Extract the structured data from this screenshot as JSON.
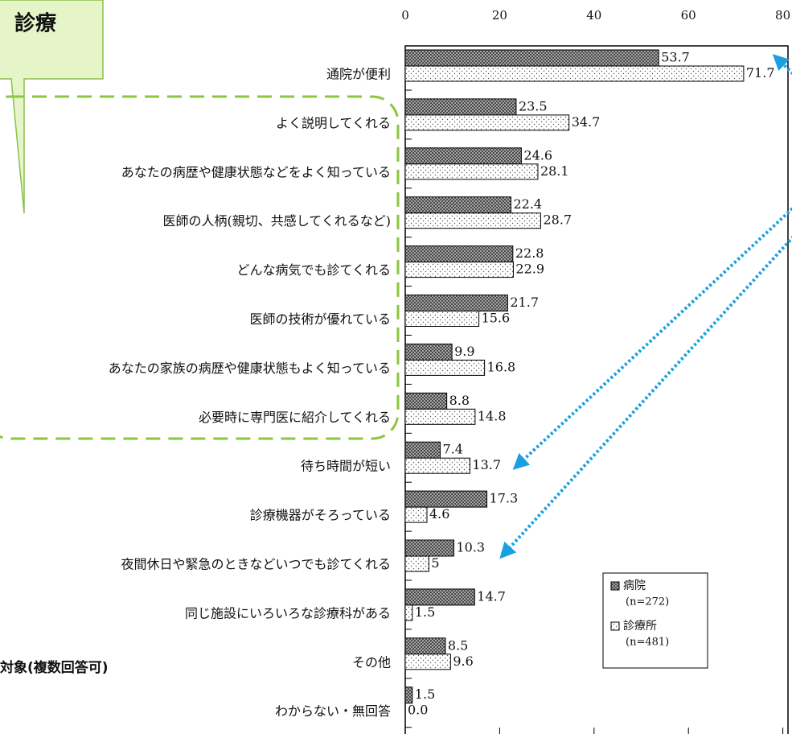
{
  "chart_data": {
    "type": "bar",
    "orientation": "horizontal",
    "categories": [
      "通院が便利",
      "よく説明してくれる",
      "あなたの病歴や健康状態などをよく知っている",
      "医師の人柄(親切、共感してくれるなど)",
      "どんな病気でも診てくれる",
      "医師の技術が優れている",
      "あなたの家族の病歴や健康状態もよく知っている",
      "必要時に専門医に紹介してくれる",
      "待ち時間が短い",
      "診療機器がそろっている",
      "夜間休日や緊急のときなどいつでも診てくれる",
      "同じ施設にいろいろな診療科がある",
      "その他",
      "わからない・無回答"
    ],
    "series": [
      {
        "name": "病院",
        "note": "(n=272)",
        "color": "#777777",
        "values": [
          53.7,
          23.5,
          24.6,
          22.4,
          22.8,
          21.7,
          9.9,
          8.8,
          7.4,
          17.3,
          10.3,
          14.7,
          8.5,
          1.5
        ]
      },
      {
        "name": "診療所",
        "note": "(n=481)",
        "color": "#ffffff",
        "values": [
          71.7,
          34.7,
          28.1,
          28.7,
          22.9,
          15.6,
          16.8,
          14.8,
          13.7,
          4.6,
          5.0,
          1.5,
          9.6,
          {
            "value": 0.0,
            "label": "0.0"
          }
        ]
      }
    ],
    "xlim": [
      0,
      80
    ],
    "xticks": [
      0,
      20,
      40,
      60,
      80
    ],
    "annotations": [
      "診療",
      "対象(複数回答可)"
    ]
  }
}
